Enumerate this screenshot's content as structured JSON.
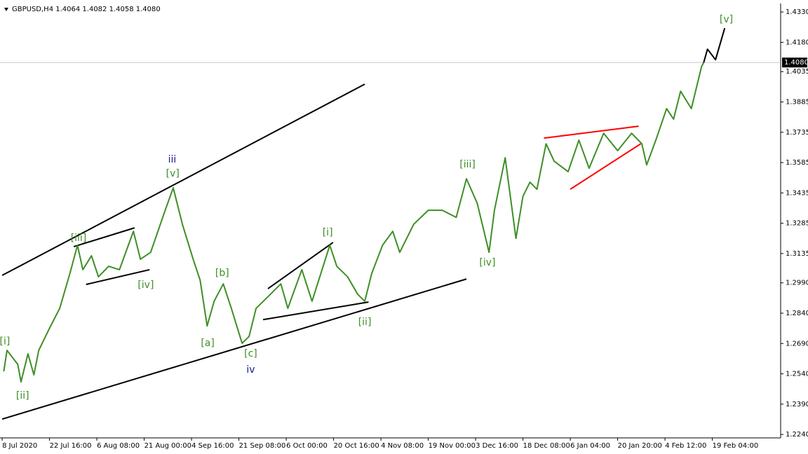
{
  "chart_data": {
    "type": "line",
    "title": "GBPUSD,H4  1.4064 1.4082 1.4058 1.4080",
    "xlim": [
      -4,
      1447
    ],
    "ylim": [
      1.2223,
      1.4372
    ],
    "xticks": [
      {
        "value": 0,
        "label": "8 Jul 2020"
      },
      {
        "value": 88,
        "label": "22 Jul 16:00"
      },
      {
        "value": 176,
        "label": "6 Aug 08:00"
      },
      {
        "value": 264,
        "label": "21 Aug 00:00"
      },
      {
        "value": 352,
        "label": "4 Sep 16:00"
      },
      {
        "value": 440,
        "label": "21 Sep 08:00"
      },
      {
        "value": 528,
        "label": "6 Oct 00:00"
      },
      {
        "value": 616,
        "label": "20 Oct 16:00"
      },
      {
        "value": 704,
        "label": "4 Nov 08:00"
      },
      {
        "value": 792,
        "label": "19 Nov 00:00"
      },
      {
        "value": 880,
        "label": "3 Dec 16:00"
      },
      {
        "value": 968,
        "label": "18 Dec 08:00"
      },
      {
        "value": 1056,
        "label": "6 Jan 04:00"
      },
      {
        "value": 1144,
        "label": "20 Jan 20:00"
      },
      {
        "value": 1232,
        "label": "4 Feb 12:00"
      },
      {
        "value": 1320,
        "label": "19 Feb 04:00"
      }
    ],
    "yticks": [
      {
        "value": 1.433,
        "label": "1.4330"
      },
      {
        "value": 1.418,
        "label": "1.4180"
      },
      {
        "value": 1.4035,
        "label": "1.4035"
      },
      {
        "value": 1.3885,
        "label": "1.3885"
      },
      {
        "value": 1.3735,
        "label": "1.3735"
      },
      {
        "value": 1.3585,
        "label": "1.3585"
      },
      {
        "value": 1.3435,
        "label": "1.3435"
      },
      {
        "value": 1.3285,
        "label": "1.3285"
      },
      {
        "value": 1.3135,
        "label": "1.3135"
      },
      {
        "value": 1.299,
        "label": "1.2990"
      },
      {
        "value": 1.284,
        "label": "1.2840"
      },
      {
        "value": 1.269,
        "label": "1.2690"
      },
      {
        "value": 1.254,
        "label": "1.2540"
      },
      {
        "value": 1.239,
        "label": "1.2390"
      },
      {
        "value": 1.224,
        "label": "1.2240"
      }
    ],
    "last": {
      "value": 1.408,
      "label": "1.4080"
    },
    "series": [
      {
        "color": "#3d8f26",
        "x": [
          3,
          9,
          29,
          35,
          48,
          59,
          68,
          87,
          107,
          126,
          140,
          150,
          166,
          179,
          198,
          218,
          244,
          257,
          276,
          303,
          318,
          335,
          355,
          368,
          381,
          394,
          411,
          426,
          446,
          459,
          472,
          492,
          518,
          531,
          557,
          576,
          609,
          622,
          642,
          661,
          674,
          687,
          707,
          726,
          739,
          765,
          792,
          818,
          844,
          863,
          883,
          905,
          915,
          935,
          955,
          968,
          981,
          994,
          1011,
          1026,
          1052,
          1072,
          1091,
          1118,
          1144,
          1170,
          1189,
          1198,
          1215,
          1235,
          1248,
          1261,
          1281,
          1300,
          1304
        ],
        "values": [
          1.2552,
          1.2656,
          1.2587,
          1.25,
          1.2639,
          1.2535,
          1.2656,
          1.276,
          1.2864,
          1.3037,
          1.3176,
          1.3055,
          1.3124,
          1.302,
          1.3072,
          1.3055,
          1.3245,
          1.3107,
          1.3141,
          1.3349,
          1.346,
          1.328,
          1.3107,
          1.3003,
          1.2777,
          1.2899,
          1.2985,
          1.2864,
          1.2691,
          1.2725,
          1.2864,
          1.2916,
          1.2985,
          1.2864,
          1.3055,
          1.2899,
          1.3176,
          1.3072,
          1.302,
          1.2933,
          1.2899,
          1.3037,
          1.3176,
          1.3245,
          1.3141,
          1.328,
          1.3349,
          1.3349,
          1.3314,
          1.3505,
          1.3384,
          1.3141,
          1.3349,
          1.3609,
          1.321,
          1.3418,
          1.3488,
          1.3453,
          1.3678,
          1.3592,
          1.354,
          1.3696,
          1.3557,
          1.373,
          1.3644,
          1.373,
          1.3678,
          1.3574,
          1.3696,
          1.3852,
          1.38,
          1.3938,
          1.3852,
          1.406,
          1.408
        ]
      },
      {
        "color": "#000000",
        "x": [
          1304,
          1311,
          1326,
          1343
        ],
        "values": [
          1.408,
          1.4146,
          1.4094,
          1.425
        ]
      }
    ],
    "trendlines": [
      {
        "color": "#000000",
        "x": [
          0,
          674
        ],
        "values": [
          1.3027,
          1.3973
        ]
      },
      {
        "color": "#000000",
        "x": [
          0,
          863
        ],
        "values": [
          1.2316,
          1.3009
        ]
      },
      {
        "color": "#000000",
        "x": [
          133,
          246
        ],
        "values": [
          1.3169,
          1.3262
        ]
      },
      {
        "color": "#000000",
        "x": [
          156,
          274
        ],
        "values": [
          1.2982,
          1.3055
        ]
      },
      {
        "color": "#000000",
        "x": [
          494,
          615
        ],
        "values": [
          1.2961,
          1.319
        ]
      },
      {
        "color": "#000000",
        "x": [
          485,
          681
        ],
        "values": [
          1.2808,
          1.2895
        ]
      },
      {
        "color": "#ff0000",
        "x": [
          1007,
          1183
        ],
        "values": [
          1.3706,
          1.3765
        ]
      },
      {
        "color": "#ff0000",
        "x": [
          1056,
          1187
        ],
        "values": [
          1.3453,
          1.3678
        ]
      }
    ],
    "annotations": [
      {
        "text": "[i]",
        "x": 5,
        "y": 1.27,
        "color": "#3d8f26"
      },
      {
        "text": "[ii]",
        "x": 38,
        "y": 1.2431,
        "color": "#3d8f26"
      },
      {
        "text": "[iii]",
        "x": 142,
        "y": 1.321,
        "color": "#3d8f26"
      },
      {
        "text": "[iv]",
        "x": 267,
        "y": 1.2978,
        "color": "#3d8f26"
      },
      {
        "text": "iii",
        "x": 316,
        "y": 1.3599,
        "color": "#1a1a8c"
      },
      {
        "text": "[v]",
        "x": 317,
        "y": 1.353,
        "color": "#3d8f26"
      },
      {
        "text": "[a]",
        "x": 382,
        "y": 1.2691,
        "color": "#3d8f26"
      },
      {
        "text": "[b]",
        "x": 409,
        "y": 1.3037,
        "color": "#3d8f26"
      },
      {
        "text": "[c]",
        "x": 462,
        "y": 1.2639,
        "color": "#3d8f26"
      },
      {
        "text": "iv",
        "x": 462,
        "y": 1.2559,
        "color": "#1a1a8c"
      },
      {
        "text": "[i]",
        "x": 605,
        "y": 1.3238,
        "color": "#3d8f26"
      },
      {
        "text": "[ii]",
        "x": 674,
        "y": 1.2795,
        "color": "#3d8f26"
      },
      {
        "text": "[iii]",
        "x": 865,
        "y": 1.3574,
        "color": "#3d8f26"
      },
      {
        "text": "[iv]",
        "x": 902,
        "y": 1.3089,
        "color": "#3d8f26"
      },
      {
        "text": "[v]",
        "x": 1346,
        "y": 1.4292,
        "color": "#3d8f26"
      }
    ]
  }
}
